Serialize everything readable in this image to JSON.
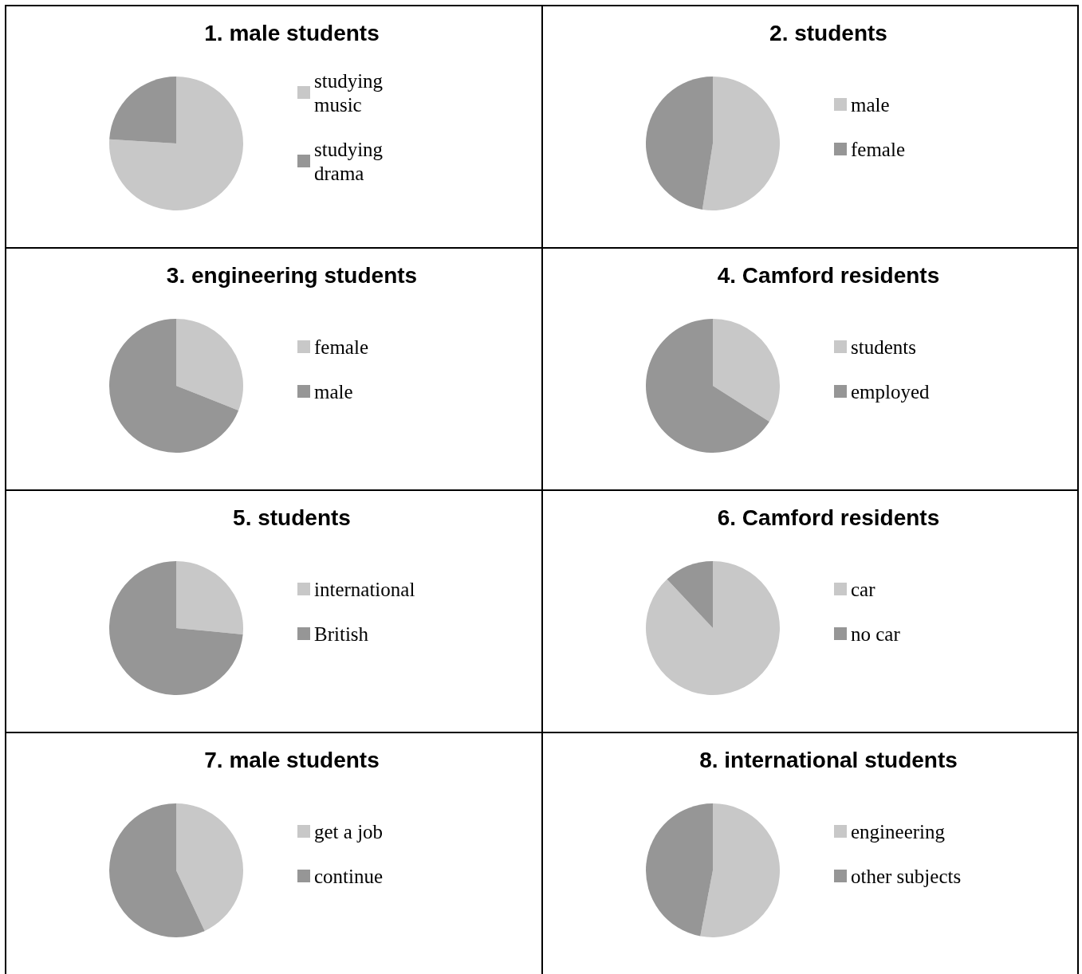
{
  "chart_data": [
    {
      "type": "pie",
      "title": "1. male students",
      "categories": [
        "studying music",
        "studying drama"
      ],
      "values": [
        76,
        24
      ],
      "colors": [
        "#c8c8c8",
        "#969696"
      ],
      "legend": "right"
    },
    {
      "type": "pie",
      "title": "2. students",
      "categories": [
        "male",
        "female"
      ],
      "values": [
        52.5,
        47.5
      ],
      "colors": [
        "#c8c8c8",
        "#969696"
      ],
      "legend": "right"
    },
    {
      "type": "pie",
      "title": "3. engineering students",
      "categories": [
        "female",
        "male"
      ],
      "values": [
        31,
        69
      ],
      "colors": [
        "#c8c8c8",
        "#969696"
      ],
      "legend": "right"
    },
    {
      "type": "pie",
      "title": "4. Camford residents",
      "categories": [
        "students",
        "employed"
      ],
      "values": [
        34,
        66
      ],
      "colors": [
        "#c8c8c8",
        "#969696"
      ],
      "legend": "right"
    },
    {
      "type": "pie",
      "title": "5. students",
      "categories": [
        "international",
        "British"
      ],
      "values": [
        26.5,
        73.5
      ],
      "colors": [
        "#c8c8c8",
        "#969696"
      ],
      "legend": "right"
    },
    {
      "type": "pie",
      "title": "6. Camford residents",
      "categories": [
        "car",
        "no car"
      ],
      "values": [
        88,
        12
      ],
      "colors": [
        "#c8c8c8",
        "#969696"
      ],
      "legend": "right"
    },
    {
      "type": "pie",
      "title": "7. male students",
      "categories": [
        "get a job",
        "continue"
      ],
      "values": [
        43,
        57
      ],
      "colors": [
        "#c8c8c8",
        "#969696"
      ],
      "legend": "right"
    },
    {
      "type": "pie",
      "title": "8. international students",
      "categories": [
        "engineering",
        "other subjects"
      ],
      "values": [
        53,
        47
      ],
      "colors": [
        "#c8c8c8",
        "#969696"
      ],
      "legend": "right"
    }
  ]
}
